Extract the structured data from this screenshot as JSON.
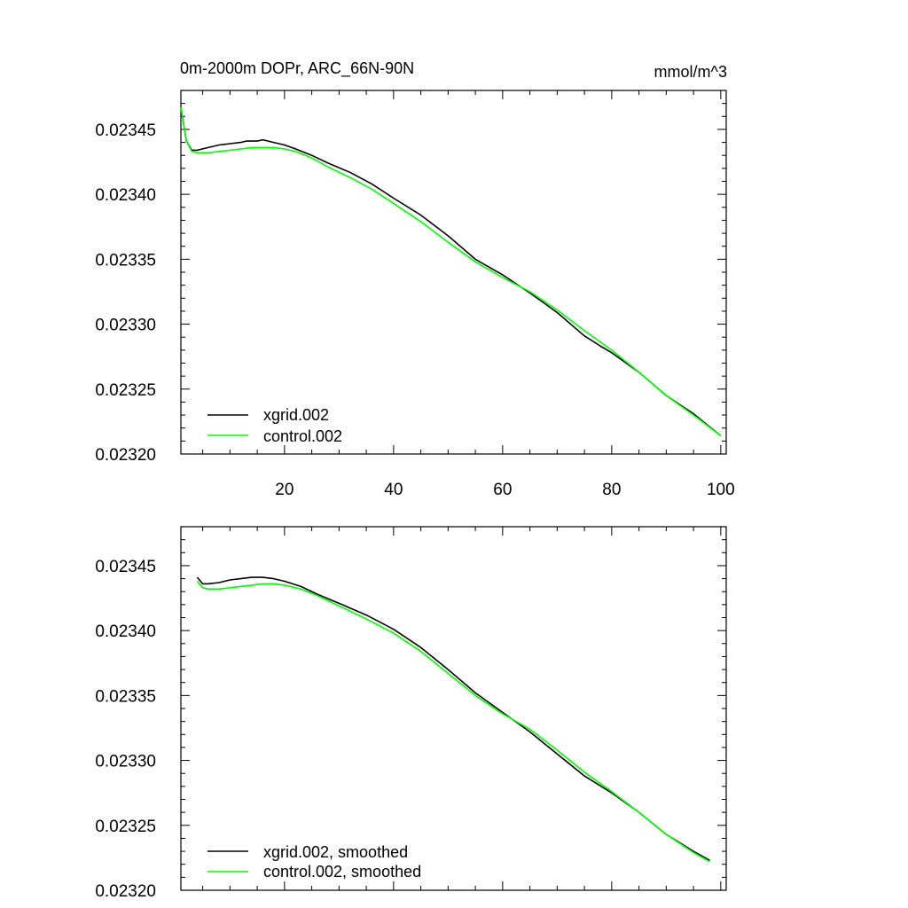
{
  "chart_data": [
    {
      "type": "line",
      "title": "0m-2000m DOPr, ARC_66N-90N",
      "units": "mmol/m^3",
      "xlabel": "",
      "ylabel": "",
      "xlim": [
        1,
        101
      ],
      "ylim": [
        0.0232,
        0.02348
      ],
      "xticks": [
        20,
        40,
        60,
        80,
        100
      ],
      "xtick_labels": [
        "20",
        "40",
        "60",
        "80",
        "100"
      ],
      "yticks": [
        0.0232,
        0.02325,
        0.0233,
        0.02335,
        0.0234,
        0.02345
      ],
      "ytick_labels": [
        "0.02320",
        "0.02325",
        "0.02330",
        "0.02335",
        "0.02340",
        "0.02345"
      ],
      "legend_position": "bottom-left",
      "series": [
        {
          "name": "xgrid.002",
          "color": "#000000",
          "x": [
            1,
            2,
            3,
            4,
            5,
            6,
            8,
            10,
            12,
            13,
            14,
            15,
            16,
            17,
            18,
            20,
            22,
            25,
            28,
            32,
            36,
            40,
            45,
            50,
            55,
            60,
            65,
            70,
            75,
            78,
            80,
            85,
            90,
            95,
            100
          ],
          "values": [
            0.023467,
            0.023441,
            0.023434,
            0.023434,
            0.023435,
            0.023436,
            0.023438,
            0.023439,
            0.02344,
            0.023441,
            0.023441,
            0.023441,
            0.023442,
            0.023441,
            0.02344,
            0.023438,
            0.023435,
            0.02343,
            0.023424,
            0.023417,
            0.023408,
            0.023397,
            0.023384,
            0.023368,
            0.02335,
            0.023338,
            0.023324,
            0.023309,
            0.023291,
            0.023283,
            0.023278,
            0.023263,
            0.023245,
            0.023231,
            0.023214
          ]
        },
        {
          "name": "control.002",
          "color": "#00ff00",
          "x": [
            1,
            2,
            3,
            4,
            5,
            6,
            8,
            10,
            12,
            14,
            16,
            18,
            20,
            22,
            25,
            28,
            32,
            36,
            40,
            45,
            50,
            55,
            60,
            65,
            70,
            75,
            80,
            85,
            90,
            95,
            100
          ],
          "values": [
            0.023467,
            0.023441,
            0.023433,
            0.023432,
            0.023432,
            0.023432,
            0.023433,
            0.023434,
            0.023435,
            0.023436,
            0.023436,
            0.023436,
            0.023435,
            0.023433,
            0.023428,
            0.023421,
            0.023413,
            0.023404,
            0.023393,
            0.023379,
            0.023363,
            0.023348,
            0.023336,
            0.023325,
            0.023311,
            0.023295,
            0.02328,
            0.023263,
            0.023245,
            0.02323,
            0.023214
          ]
        }
      ]
    },
    {
      "type": "line",
      "title": "",
      "xlabel": "",
      "ylabel": "",
      "xlim": [
        1,
        101
      ],
      "ylim": [
        0.0232,
        0.02348
      ],
      "xticks": [
        20,
        40,
        60,
        80,
        100
      ],
      "yticks": [
        0.0232,
        0.02325,
        0.0233,
        0.02335,
        0.0234,
        0.02345
      ],
      "ytick_labels": [
        "0.02320",
        "0.02325",
        "0.02330",
        "0.02335",
        "0.02340",
        "0.02345"
      ],
      "legend_position": "bottom-left",
      "series": [
        {
          "name": "xgrid.002, smoothed",
          "color": "#000000",
          "x": [
            4,
            5,
            6,
            8,
            10,
            12,
            14,
            15,
            16,
            18,
            20,
            23,
            26,
            30,
            35,
            40,
            45,
            50,
            55,
            60,
            65,
            70,
            75,
            80,
            85,
            90,
            95,
            98
          ],
          "values": [
            0.023441,
            0.023436,
            0.023436,
            0.023437,
            0.023439,
            0.02344,
            0.023441,
            0.023441,
            0.023441,
            0.02344,
            0.023438,
            0.023434,
            0.023428,
            0.023421,
            0.023412,
            0.023401,
            0.023387,
            0.02337,
            0.023352,
            0.023337,
            0.023322,
            0.023305,
            0.023288,
            0.023275,
            0.02326,
            0.023243,
            0.02323,
            0.023223
          ]
        },
        {
          "name": "control.002, smoothed",
          "color": "#00ff00",
          "x": [
            4,
            5,
            6,
            8,
            10,
            12,
            14,
            16,
            18,
            20,
            23,
            26,
            30,
            35,
            40,
            45,
            50,
            55,
            60,
            65,
            70,
            75,
            80,
            85,
            90,
            95,
            98
          ],
          "values": [
            0.023438,
            0.023433,
            0.023432,
            0.023432,
            0.023433,
            0.023434,
            0.023435,
            0.023436,
            0.023436,
            0.023435,
            0.023432,
            0.023427,
            0.023419,
            0.023409,
            0.023398,
            0.023384,
            0.023367,
            0.02335,
            0.023336,
            0.023324,
            0.023308,
            0.023291,
            0.023276,
            0.02326,
            0.023243,
            0.023229,
            0.023222
          ]
        }
      ]
    }
  ]
}
